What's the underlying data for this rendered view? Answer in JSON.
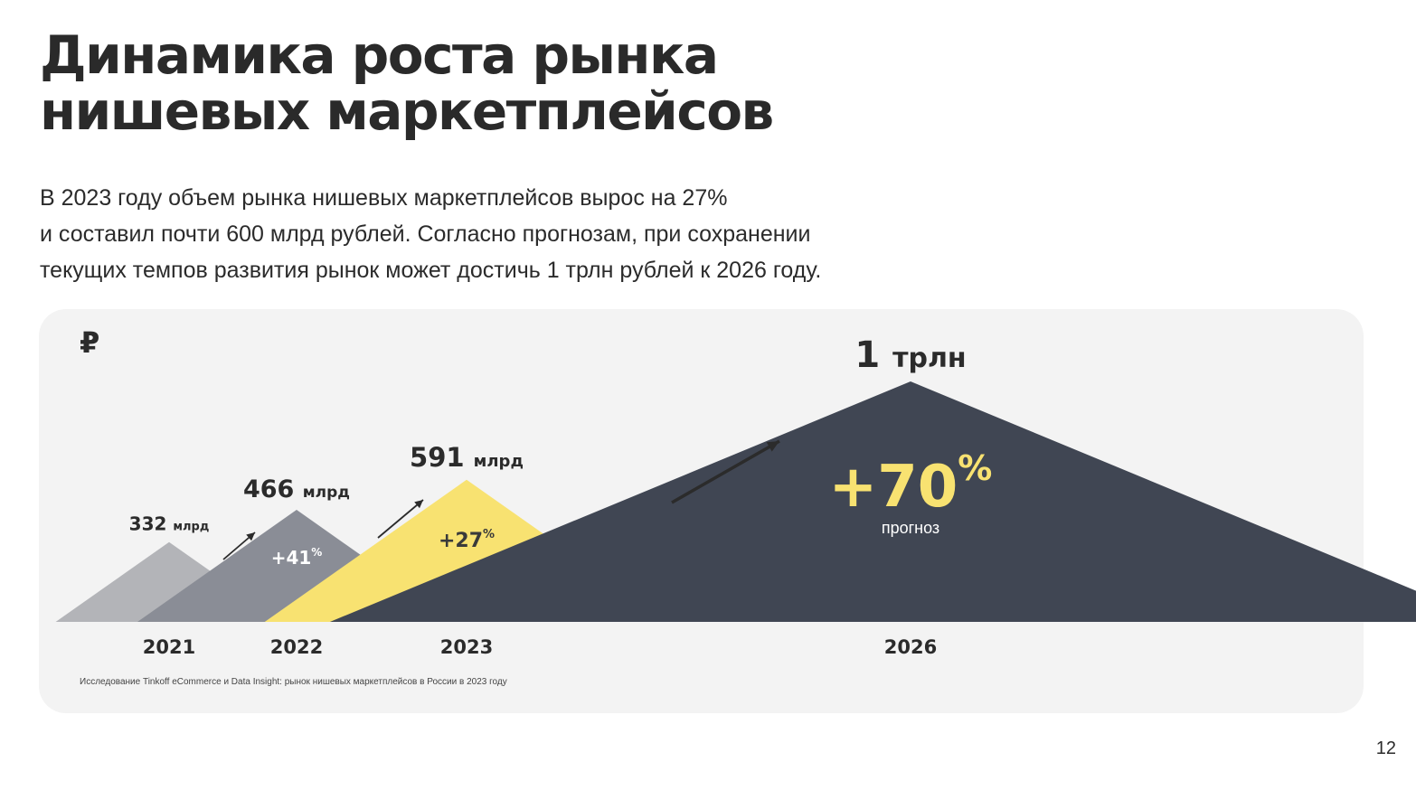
{
  "title": {
    "line1": "Динамика роста рынка",
    "line2": "нишевых маркетплейсов"
  },
  "lead": {
    "line1": "В 2023 году объем рынка нишевых маркетплейсов вырос на 27%",
    "line2": "и составил почти 600 млрд рублей. Согласно прогнозам, при сохранении",
    "line3": "текущих темпов развития рынок может достичь 1 трлн рублей к 2026 году."
  },
  "currency_symbol": "₽",
  "source": "Исследование Tinkoff eCommerce и Data Insight: рынок нишевых маркетплейсов в России в 2023 году",
  "page_number": "12",
  "chart_data": {
    "type": "area",
    "categories": [
      "2021",
      "2022",
      "2023",
      "2026"
    ],
    "values": [
      332,
      466,
      591,
      1000
    ],
    "unit": "млрд",
    "value_labels": [
      {
        "num": "332",
        "unit": "млрд"
      },
      {
        "num": "466",
        "unit": "млрд"
      },
      {
        "num": "591",
        "unit": "млрд"
      },
      {
        "num": "1",
        "unit": "трлн"
      }
    ],
    "growth": [
      null,
      {
        "value": "+41",
        "suffix": "%",
        "note": ""
      },
      {
        "value": "+27",
        "suffix": "%",
        "note": ""
      },
      {
        "value": "+70",
        "suffix": "%",
        "note": "прогноз"
      }
    ],
    "colors": [
      "#b3b4b8",
      "#8a8d96",
      "#f8e271",
      "#404653"
    ],
    "growth_text_colors": [
      "#ffffff",
      "#ffffff",
      "#3a3a3a",
      "#f8e271"
    ]
  }
}
